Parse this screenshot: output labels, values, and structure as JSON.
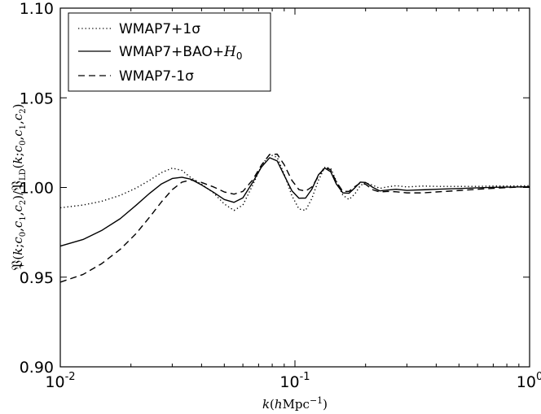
{
  "chart_data": {
    "type": "line",
    "title": "",
    "xlabel": "k(hMpc^-1)",
    "ylabel": "P(k;c0,c1,c2)/P_LD(k;c0,c1,c2)",
    "xscale": "log",
    "xlim": [
      0.01,
      1.0
    ],
    "ylim": [
      0.9,
      1.1
    ],
    "grid": false,
    "legend_position": "top-left",
    "x_ticks": [
      {
        "base": "10",
        "exp": "-2",
        "value": 0.01
      },
      {
        "base": "10",
        "exp": "-1",
        "value": 0.1
      },
      {
        "base": "10",
        "exp": "0",
        "value": 1.0
      }
    ],
    "y_ticks": [
      "0.90",
      "0.95",
      "1.00",
      "1.05",
      "1.10"
    ],
    "series": [
      {
        "name": "WMAP7+1σ",
        "style": "dotted",
        "color": "#000000",
        "x": [
          0.01,
          0.0125,
          0.015,
          0.018,
          0.021,
          0.024,
          0.027,
          0.03,
          0.033,
          0.036,
          0.04,
          0.045,
          0.05,
          0.055,
          0.06,
          0.066,
          0.072,
          0.078,
          0.084,
          0.09,
          0.097,
          0.104,
          0.111,
          0.118,
          0.126,
          0.134,
          0.142,
          0.15,
          0.16,
          0.17,
          0.18,
          0.19,
          0.2,
          0.215,
          0.23,
          0.25,
          0.27,
          0.3,
          0.35,
          0.4,
          0.5,
          0.6,
          0.7,
          0.8,
          0.9,
          1.0
        ],
        "values": [
          0.9887,
          0.9902,
          0.9923,
          0.9956,
          0.9996,
          1.004,
          1.0083,
          1.0108,
          1.0095,
          1.0055,
          1.0018,
          0.997,
          0.9908,
          0.9872,
          0.9902,
          1.0012,
          1.0121,
          1.0184,
          1.0168,
          1.0075,
          0.9955,
          0.988,
          0.9872,
          0.9938,
          1.0041,
          1.0112,
          1.0108,
          1.0036,
          0.9957,
          0.9933,
          0.9964,
          1.0011,
          1.0027,
          1.0012,
          0.9995,
          1.0004,
          1.001,
          1.0003,
          1.0008,
          1.0006,
          1.0006,
          1.0006,
          1.0008,
          1.0008,
          1.0009,
          1.001
        ]
      },
      {
        "name": "WMAP7+BAO+",
        "name_math": "H",
        "name_sub": "0",
        "style": "solid",
        "color": "#000000",
        "x": [
          0.01,
          0.0125,
          0.015,
          0.018,
          0.021,
          0.024,
          0.027,
          0.03,
          0.033,
          0.036,
          0.04,
          0.045,
          0.05,
          0.055,
          0.06,
          0.066,
          0.072,
          0.078,
          0.084,
          0.09,
          0.097,
          0.104,
          0.111,
          0.118,
          0.126,
          0.134,
          0.142,
          0.15,
          0.16,
          0.17,
          0.18,
          0.19,
          0.2,
          0.215,
          0.23,
          0.25,
          0.27,
          0.3,
          0.35,
          0.4,
          0.5,
          0.6,
          0.7,
          0.8,
          0.9,
          1.0
        ],
        "values": [
          0.9673,
          0.971,
          0.976,
          0.9826,
          0.99,
          0.9967,
          1.002,
          1.005,
          1.0057,
          1.0046,
          1.0014,
          0.9973,
          0.9933,
          0.9917,
          0.9942,
          1.0028,
          1.0114,
          1.0166,
          1.0148,
          1.0068,
          0.9982,
          0.994,
          0.9941,
          0.999,
          1.0071,
          1.0108,
          1.0088,
          1.002,
          0.997,
          0.9968,
          0.9998,
          1.003,
          1.0028,
          1.0,
          0.9981,
          0.9986,
          0.999,
          0.9984,
          0.9987,
          0.999,
          0.9994,
          0.9998,
          1.0001,
          1.0002,
          1.0003,
          1.0004
        ]
      },
      {
        "name": "WMAP7-1σ",
        "style": "dashed",
        "color": "#000000",
        "x": [
          0.01,
          0.0125,
          0.015,
          0.018,
          0.021,
          0.024,
          0.027,
          0.03,
          0.033,
          0.036,
          0.04,
          0.045,
          0.05,
          0.055,
          0.06,
          0.066,
          0.072,
          0.078,
          0.084,
          0.09,
          0.097,
          0.104,
          0.111,
          0.118,
          0.126,
          0.134,
          0.142,
          0.15,
          0.16,
          0.17,
          0.18,
          0.19,
          0.2,
          0.215,
          0.23,
          0.25,
          0.27,
          0.3,
          0.35,
          0.4,
          0.5,
          0.6,
          0.7,
          0.8,
          0.9,
          1.0
        ],
        "values": [
          0.9472,
          0.9515,
          0.9575,
          0.9655,
          0.9742,
          0.9834,
          0.992,
          0.9988,
          1.003,
          1.0042,
          1.0028,
          1.0003,
          0.9975,
          0.9963,
          0.9978,
          1.0042,
          1.0125,
          1.0184,
          1.0186,
          1.0127,
          1.004,
          0.9988,
          0.998,
          1.0003,
          1.0063,
          1.0114,
          1.0098,
          1.0032,
          0.9978,
          0.9978,
          1.0005,
          1.0025,
          1.0018,
          0.9987,
          0.9975,
          0.9978,
          0.9976,
          0.997,
          0.997,
          0.9975,
          0.9983,
          0.999,
          0.9995,
          0.9999,
          1.0002,
          1.0005
        ]
      }
    ]
  }
}
